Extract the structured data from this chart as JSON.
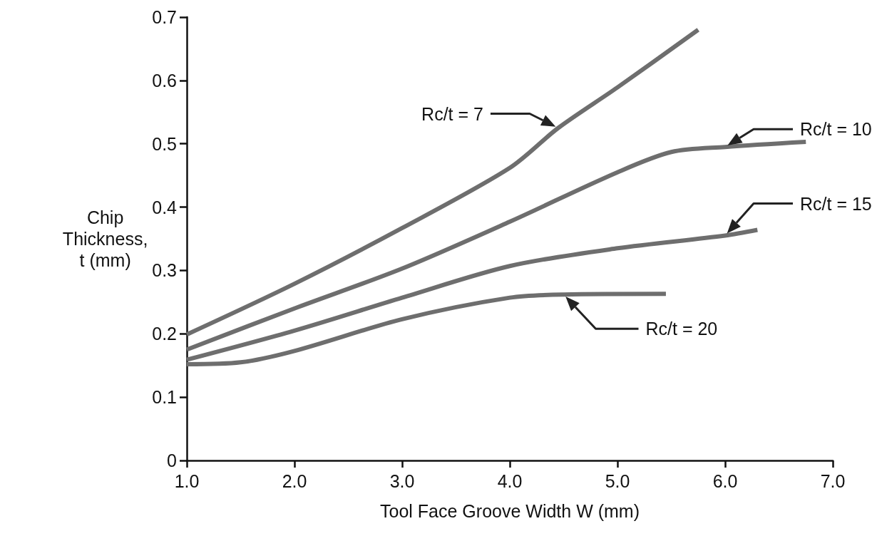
{
  "chart_data": {
    "type": "line",
    "xlabel": "Tool Face Groove Width W (mm)",
    "ylabel": "Chip Thickness, t (mm)",
    "xlim": [
      1,
      7
    ],
    "ylim": [
      0,
      0.7
    ],
    "xticks": [
      {
        "value": 1,
        "label": "1.0"
      },
      {
        "value": 2,
        "label": "2.0"
      },
      {
        "value": 3,
        "label": "3.0"
      },
      {
        "value": 4,
        "label": "4.0"
      },
      {
        "value": 5,
        "label": "5.0"
      },
      {
        "value": 6,
        "label": "6.0"
      },
      {
        "value": 7,
        "label": "7.0"
      }
    ],
    "yticks": [
      0,
      0.1,
      0.2,
      0.3,
      0.4,
      0.5,
      0.6,
      0.7
    ],
    "marker": "none",
    "line_style": "solid",
    "series": [
      {
        "name": "Rc/t = 7",
        "color": "#6e6e6e",
        "x": [
          1,
          2,
          3,
          4,
          4.45,
          5,
          5.75
        ],
        "values": [
          0.199,
          0.279,
          0.367,
          0.462,
          0.525,
          0.589,
          0.68
        ]
      },
      {
        "name": "Rc/t = 10",
        "color": "#6e6e6e",
        "x": [
          1,
          2,
          3,
          4,
          5,
          5.5,
          6,
          6.75
        ],
        "values": [
          0.175,
          0.24,
          0.303,
          0.377,
          0.455,
          0.487,
          0.495,
          0.503
        ]
      },
      {
        "name": "Rc/t = 15",
        "color": "#6e6e6e",
        "x": [
          1,
          2,
          3,
          4,
          5,
          6,
          6.3
        ],
        "values": [
          0.159,
          0.205,
          0.257,
          0.307,
          0.335,
          0.355,
          0.364
        ]
      },
      {
        "name": "Rc/t = 20",
        "color": "#6e6e6e",
        "x": [
          1,
          1.5,
          2,
          3,
          4,
          4.5,
          5.45
        ],
        "values": [
          0.152,
          0.155,
          0.173,
          0.223,
          0.257,
          0.262,
          0.263
        ]
      }
    ]
  }
}
